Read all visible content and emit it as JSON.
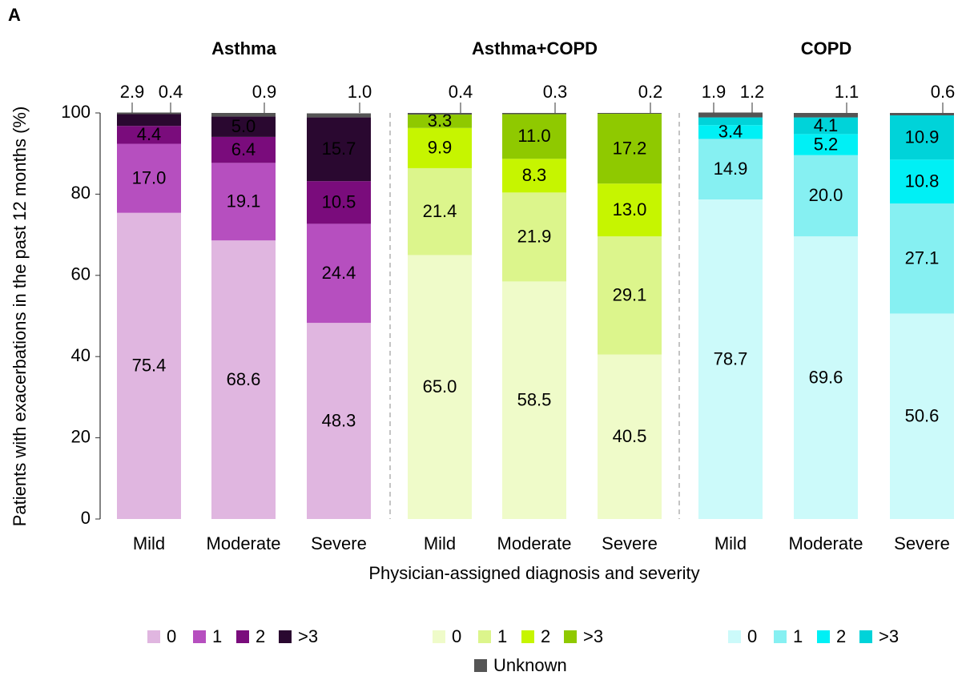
{
  "chart_data": {
    "type": "bar",
    "stacked": true,
    "panel_label": "A",
    "y_label": "Patients with exacerbations in the past 12 months (%)",
    "x_label": "Physician-assigned diagnosis and severity",
    "ylim": [
      0,
      100
    ],
    "yticks": [
      0,
      20,
      40,
      60,
      80,
      100
    ],
    "groups": [
      {
        "title": "Asthma",
        "categories": [
          "Mild",
          "Moderate",
          "Severe"
        ],
        "series": [
          {
            "name": "0",
            "color": "#e0b6e0",
            "label_color": "#000",
            "values": [
              75.4,
              68.6,
              48.3
            ],
            "value_labels": [
              "75.4",
              "68.6",
              "48.3"
            ]
          },
          {
            "name": "1",
            "color": "#b64fbf",
            "label_color": "#fff",
            "values": [
              17,
              19.1,
              24.4
            ],
            "value_labels": [
              "17.0",
              "19.1",
              "24.4"
            ]
          },
          {
            "name": "2",
            "color": "#7a0c7c",
            "label_color": "#fff",
            "values": [
              4.4,
              6.4,
              10.5
            ],
            "value_labels": [
              "4.4",
              "6.4",
              "10.5"
            ]
          },
          {
            "name": ">3",
            "color": "#2a0830",
            "label_color": "#fff",
            "values": [
              2.9,
              5,
              15.7
            ],
            "value_labels": [
              "2.9",
              "5.0",
              "15.7"
            ]
          }
        ]
      },
      {
        "title": "Asthma+COPD",
        "categories": [
          "Mild",
          "Moderate",
          "Severe"
        ],
        "series": [
          {
            "name": "0",
            "color": "#effbc9",
            "label_color": "#000",
            "values": [
              65,
              58.5,
              40.5
            ],
            "value_labels": [
              "65.0",
              "58.5",
              "40.5"
            ]
          },
          {
            "name": "1",
            "color": "#dcf58c",
            "label_color": "#000",
            "values": [
              21.4,
              21.9,
              29.1
            ],
            "value_labels": [
              "21.4",
              "21.9",
              "29.1"
            ]
          },
          {
            "name": "2",
            "color": "#c6f500",
            "label_color": "#000",
            "values": [
              9.9,
              8.3,
              13
            ],
            "value_labels": [
              "9.9",
              "8.3",
              "13.0"
            ]
          },
          {
            "name": ">3",
            "color": "#8fc900",
            "label_color": "#fff",
            "values": [
              3.3,
              11,
              17.2
            ],
            "value_labels": [
              "3.3",
              "11.0",
              "17.2"
            ]
          }
        ]
      },
      {
        "title": "COPD",
        "categories": [
          "Mild",
          "Moderate",
          "Severe"
        ],
        "series": [
          {
            "name": "0",
            "color": "#ccfafa",
            "label_color": "#000",
            "values": [
              78.7,
              69.6,
              50.6
            ],
            "value_labels": [
              "78.7",
              "69.6",
              "50.6"
            ]
          },
          {
            "name": "1",
            "color": "#86f0f2",
            "label_color": "#000",
            "values": [
              14.9,
              20,
              27.1
            ],
            "value_labels": [
              "14.9",
              "20.0",
              "27.1"
            ]
          },
          {
            "name": "2",
            "color": "#00f0f5",
            "label_color": "#fff",
            "values": [
              3.4,
              5.2,
              10.8
            ],
            "value_labels": [
              "3.4",
              "5.2",
              "10.8"
            ]
          },
          {
            "name": ">3",
            "color": "#00d3d9",
            "label_color": "#fff",
            "values": [
              1.9,
              4.1,
              10.9
            ],
            "value_labels": [
              "1.9",
              "4.1",
              "10.9"
            ]
          }
        ]
      }
    ],
    "unknown": {
      "name": "Unknown",
      "color": "#555555",
      "values": [
        [
          0.4,
          0.9,
          1
        ],
        [
          0.4,
          0.3,
          0.2
        ],
        [
          1.2,
          1.1,
          0.6
        ]
      ],
      "value_labels": [
        [
          "0.4",
          "0.9",
          "1.0"
        ],
        [
          "0.4",
          "0.3",
          "0.2"
        ],
        [
          "1.2",
          "1.1",
          "0.6"
        ]
      ]
    }
  }
}
